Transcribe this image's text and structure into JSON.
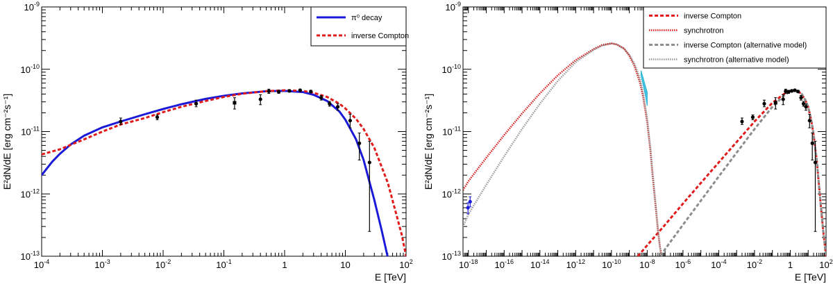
{
  "chart_data": [
    {
      "type": "line",
      "panel": "left",
      "xlabel": "E [TeV]",
      "ylabel": "E²dN/dE [erg cm⁻²s⁻¹]",
      "xscale": "log",
      "yscale": "log",
      "xlim": [
        0.0001,
        100
      ],
      "ylim": [
        1e-13,
        1e-09
      ],
      "x_ticks": [
        {
          "base": "10",
          "exp": "-4",
          "v": 0.0001
        },
        {
          "base": "10",
          "exp": "-3",
          "v": 0.001
        },
        {
          "base": "10",
          "exp": "-2",
          "v": 0.01
        },
        {
          "base": "10",
          "exp": "-1",
          "v": 0.1
        },
        {
          "base": "1",
          "exp": "",
          "v": 1
        },
        {
          "base": "10",
          "exp": "",
          "v": 10
        },
        {
          "base": "10",
          "exp": "2",
          "v": 100
        }
      ],
      "y_ticks": [
        {
          "base": "10",
          "exp": "-13",
          "v": 1e-13
        },
        {
          "base": "10",
          "exp": "-12",
          "v": 1e-12
        },
        {
          "base": "10",
          "exp": "-11",
          "v": 1e-11
        },
        {
          "base": "10",
          "exp": "-10",
          "v": 1e-10
        },
        {
          "base": "10",
          "exp": "-9",
          "v": 1e-09
        }
      ],
      "legend": {
        "position": "top-right",
        "entries": [
          "π⁰ decay",
          "inverse Compton"
        ]
      },
      "series": [
        {
          "name": "π⁰ decay",
          "color": "#1a1ad8",
          "style": "solid",
          "x": [
            0.0001,
            0.00015,
            0.0002,
            0.0003,
            0.0005,
            0.001,
            0.002,
            0.005,
            0.01,
            0.02,
            0.05,
            0.1,
            0.2,
            0.5,
            1,
            2,
            3,
            5,
            8,
            10,
            15,
            20,
            30,
            40,
            50
          ],
          "y": [
            2e-12,
            3.3e-12,
            4.4e-12,
            6.2e-12,
            8.6e-12,
            1.17e-11,
            1.45e-11,
            1.9e-11,
            2.3e-11,
            2.75e-11,
            3.35e-11,
            3.75e-11,
            4.1e-11,
            4.45e-11,
            4.5e-11,
            4.3e-11,
            3.9e-11,
            3.1e-11,
            2.1e-11,
            1.55e-11,
            7.5e-12,
            3.5e-12,
            8e-13,
            2.5e-13,
            9.5e-14
          ]
        },
        {
          "name": "inverse Compton",
          "color": "#e01b1b",
          "style": "dashed",
          "x": [
            0.0001,
            0.0002,
            0.0005,
            0.001,
            0.002,
            0.005,
            0.01,
            0.02,
            0.05,
            0.1,
            0.2,
            0.5,
            1,
            2,
            3,
            5,
            8,
            10,
            15,
            20,
            30,
            50,
            70,
            85,
            100
          ],
          "y": [
            4.3e-12,
            5.2e-12,
            7.5e-12,
            1e-11,
            1.3e-11,
            1.65e-11,
            2.05e-11,
            2.5e-11,
            3.1e-11,
            3.6e-11,
            4.05e-11,
            4.45e-11,
            4.6e-11,
            4.5e-11,
            4.2e-11,
            3.6e-11,
            2.8e-11,
            2.35e-11,
            1.6e-11,
            1.1e-11,
            5.5e-12,
            1.5e-12,
            4.5e-13,
            2.2e-13,
            1e-13
          ]
        }
      ],
      "points": {
        "x": [
          0.002,
          0.008,
          0.035,
          0.15,
          0.4,
          0.55,
          0.8,
          1.2,
          1.8,
          2.7,
          4,
          5.5,
          7.5,
          12,
          17,
          25
        ],
        "y": [
          1.45e-11,
          1.7e-11,
          2.8e-11,
          2.9e-11,
          3.3e-11,
          4.45e-11,
          4.35e-11,
          4.5e-11,
          4.6e-11,
          4.4e-11,
          3.5e-11,
          2.8e-11,
          2.5e-11,
          1.5e-11,
          6.5e-12,
          3.2e-12
        ],
        "ylo": [
          1.3e-11,
          1.55e-11,
          2.5e-11,
          2.3e-11,
          2.7e-11,
          4.1e-11,
          4.1e-11,
          4.3e-11,
          4.4e-11,
          4.2e-11,
          3.2e-11,
          2.55e-11,
          2.2e-11,
          1.15e-11,
          3.5e-12,
          2.5e-13
        ],
        "yhi": [
          1.65e-11,
          1.85e-11,
          3.2e-11,
          3.5e-11,
          3.9e-11,
          4.8e-11,
          4.6e-11,
          4.7e-11,
          4.8e-11,
          4.6e-11,
          3.8e-11,
          3.05e-11,
          2.8e-11,
          1.9e-11,
          9.5e-12,
          7e-12
        ]
      }
    },
    {
      "type": "line",
      "panel": "right",
      "xlabel": "E [TeV]",
      "ylabel": "E²dN/dE [erg cm⁻²s⁻¹]",
      "xscale": "log",
      "yscale": "log",
      "xlim": [
        5e-19,
        100
      ],
      "ylim": [
        1e-13,
        1e-09
      ],
      "x_ticks": [
        {
          "base": "10",
          "exp": "-18",
          "v": 1e-18
        },
        {
          "base": "10",
          "exp": "-16",
          "v": 1e-16
        },
        {
          "base": "10",
          "exp": "-14",
          "v": 1e-14
        },
        {
          "base": "10",
          "exp": "-12",
          "v": 1e-12
        },
        {
          "base": "10",
          "exp": "-10",
          "v": 1e-10
        },
        {
          "base": "10",
          "exp": "-8",
          "v": 1e-08
        },
        {
          "base": "10",
          "exp": "-6",
          "v": 1e-06
        },
        {
          "base": "10",
          "exp": "-4",
          "v": 0.0001
        },
        {
          "base": "10",
          "exp": "-2",
          "v": 0.01
        },
        {
          "base": "1",
          "exp": "",
          "v": 1
        },
        {
          "base": "10",
          "exp": "2",
          "v": 100
        }
      ],
      "y_ticks": [
        {
          "base": "10",
          "exp": "-13",
          "v": 1e-13
        },
        {
          "base": "10",
          "exp": "-12",
          "v": 1e-12
        },
        {
          "base": "10",
          "exp": "-11",
          "v": 1e-11
        },
        {
          "base": "10",
          "exp": "-10",
          "v": 1e-10
        },
        {
          "base": "10",
          "exp": "-9",
          "v": 1e-09
        }
      ],
      "legend": {
        "position": "top-right",
        "entries": [
          "inverse Compton",
          "synchrotron",
          "inverse Compton (alternative model)",
          "synchrotron (alternative model)"
        ]
      },
      "series": [
        {
          "name": "inverse Compton",
          "color": "#e01b1b",
          "style": "dashed",
          "x": [
            3e-09,
            1e-08,
            1e-07,
            1e-06,
            1e-05,
            0.0001,
            0.001,
            0.01,
            0.1,
            0.5,
            1,
            2,
            4,
            7,
            10,
            15,
            20,
            30,
            50,
            70,
            100
          ],
          "y": [
            1e-13,
            1.5e-13,
            3.2e-13,
            7e-13,
            1.5e-12,
            3.2e-12,
            6.8e-12,
            1.45e-11,
            2.9e-11,
            4.1e-11,
            4.5e-11,
            4.55e-11,
            4.1e-11,
            3.2e-11,
            2.5e-11,
            1.5e-11,
            9e-12,
            3.5e-12,
            7e-13,
            2.5e-13,
            1e-13
          ]
        },
        {
          "name": "synchrotron",
          "color": "#d11a1a",
          "style": "dotted",
          "x": [
            5e-19,
            1e-18,
            1e-17,
            1e-16,
            1e-15,
            1e-14,
            1e-13,
            1e-12,
            1e-11,
            3e-11,
            1e-10,
            2e-10,
            5e-10,
            1e-09,
            2e-09,
            4e-09,
            6e-09,
            1e-08,
            1.5e-08,
            2e-08,
            3e-08,
            4e-08,
            5e-08,
            6e-08,
            7e-08
          ],
          "y": [
            1.15e-12,
            1.6e-12,
            3.8e-12,
            8.8e-12,
            1.95e-11,
            4.1e-11,
            8e-11,
            1.4e-10,
            2.1e-10,
            2.45e-10,
            2.6e-10,
            2.5e-10,
            2.15e-10,
            1.65e-10,
            1.1e-10,
            6e-11,
            3.5e-11,
            1.4e-11,
            5e-12,
            2e-12,
            6e-13,
            2.5e-13,
            1.5e-13,
            1.1e-13,
            1e-13
          ]
        },
        {
          "name": "inverse Compton (alternative model)",
          "color": "#8c8c8c",
          "style": "dashed",
          "x": [
            6e-08,
            1e-07,
            1e-06,
            1e-05,
            0.0001,
            0.001,
            0.01,
            0.1,
            0.5,
            1,
            2,
            4,
            7,
            10,
            15,
            20,
            30,
            50,
            70,
            100
          ],
          "y": [
            1e-13,
            1.3e-13,
            3.2e-13,
            7.8e-13,
            1.9e-12,
            4.6e-12,
            1.1e-11,
            2.5e-11,
            3.9e-11,
            4.4e-11,
            4.6e-11,
            4.2e-11,
            3.2e-11,
            2.5e-11,
            1.5e-11,
            9e-12,
            3.5e-12,
            7e-13,
            2.5e-13,
            1e-13
          ]
        },
        {
          "name": "synchrotron (alternative model)",
          "color": "#9a9a9a",
          "style": "dotted",
          "x": [
            5e-19,
            1e-18,
            1e-17,
            1e-16,
            1e-15,
            1e-14,
            1e-13,
            1e-12,
            1e-11,
            3e-11,
            1e-10,
            2e-10,
            5e-10,
            1e-09,
            2e-09,
            4e-09,
            6e-09,
            1e-08,
            1.5e-08,
            2e-08,
            3e-08,
            4e-08,
            5e-08,
            6e-08
          ],
          "y": [
            3e-13,
            4.7e-13,
            1.4e-12,
            4e-12,
            1.1e-11,
            2.8e-11,
            6.5e-11,
            1.3e-10,
            2.05e-10,
            2.4e-10,
            2.6e-10,
            2.5e-10,
            2.15e-10,
            1.7e-10,
            1.2e-10,
            7e-11,
            4e-11,
            1.6e-11,
            5.5e-12,
            2.2e-12,
            6.5e-13,
            2.7e-13,
            1.5e-13,
            1e-13
          ]
        }
      ],
      "points": {
        "x": [
          0.002,
          0.008,
          0.035,
          0.15,
          0.4,
          0.55,
          0.8,
          1.2,
          1.8,
          2.7,
          4,
          5.5,
          7.5,
          12,
          17,
          25
        ],
        "y": [
          1.45e-11,
          1.7e-11,
          2.8e-11,
          2.9e-11,
          3.3e-11,
          4.45e-11,
          4.35e-11,
          4.5e-11,
          4.6e-11,
          4.4e-11,
          3.5e-11,
          2.8e-11,
          2.5e-11,
          1.5e-11,
          6.5e-12,
          3.2e-12
        ],
        "ylo": [
          1.3e-11,
          1.55e-11,
          2.5e-11,
          2.3e-11,
          2.7e-11,
          4.1e-11,
          4.1e-11,
          4.3e-11,
          4.4e-11,
          4.2e-11,
          3.2e-11,
          2.55e-11,
          2.2e-11,
          1.15e-11,
          3.5e-12,
          2.5e-13
        ],
        "yhi": [
          1.65e-11,
          1.85e-11,
          3.2e-11,
          3.5e-11,
          3.9e-11,
          4.8e-11,
          4.6e-11,
          4.7e-11,
          4.8e-11,
          4.6e-11,
          3.8e-11,
          3.05e-11,
          2.8e-11,
          1.9e-11,
          9.5e-12,
          7e-12
        ]
      },
      "radio_points": {
        "x": [
          9.5e-19,
          1.25e-18
        ],
        "y": [
          6e-13,
          7.5e-13
        ],
        "ylo": [
          4.8e-13,
          6.2e-13
        ],
        "yhi": [
          7.2e-13,
          9e-13
        ],
        "color": "#1a1ad8"
      },
      "xray_band": {
        "color": "#29b6d8",
        "upper": {
          "x": [
            4.5e-09,
            6e-09,
            8e-09,
            1e-08
          ],
          "y": [
            9.5e-11,
            7.2e-11,
            5.3e-11,
            4.3e-11
          ]
        },
        "lower": {
          "x": [
            4.5e-09,
            6e-09,
            8e-09,
            1e-08
          ],
          "y": [
            8e-11,
            5.5e-11,
            3.7e-11,
            2.6e-11
          ]
        }
      }
    }
  ]
}
